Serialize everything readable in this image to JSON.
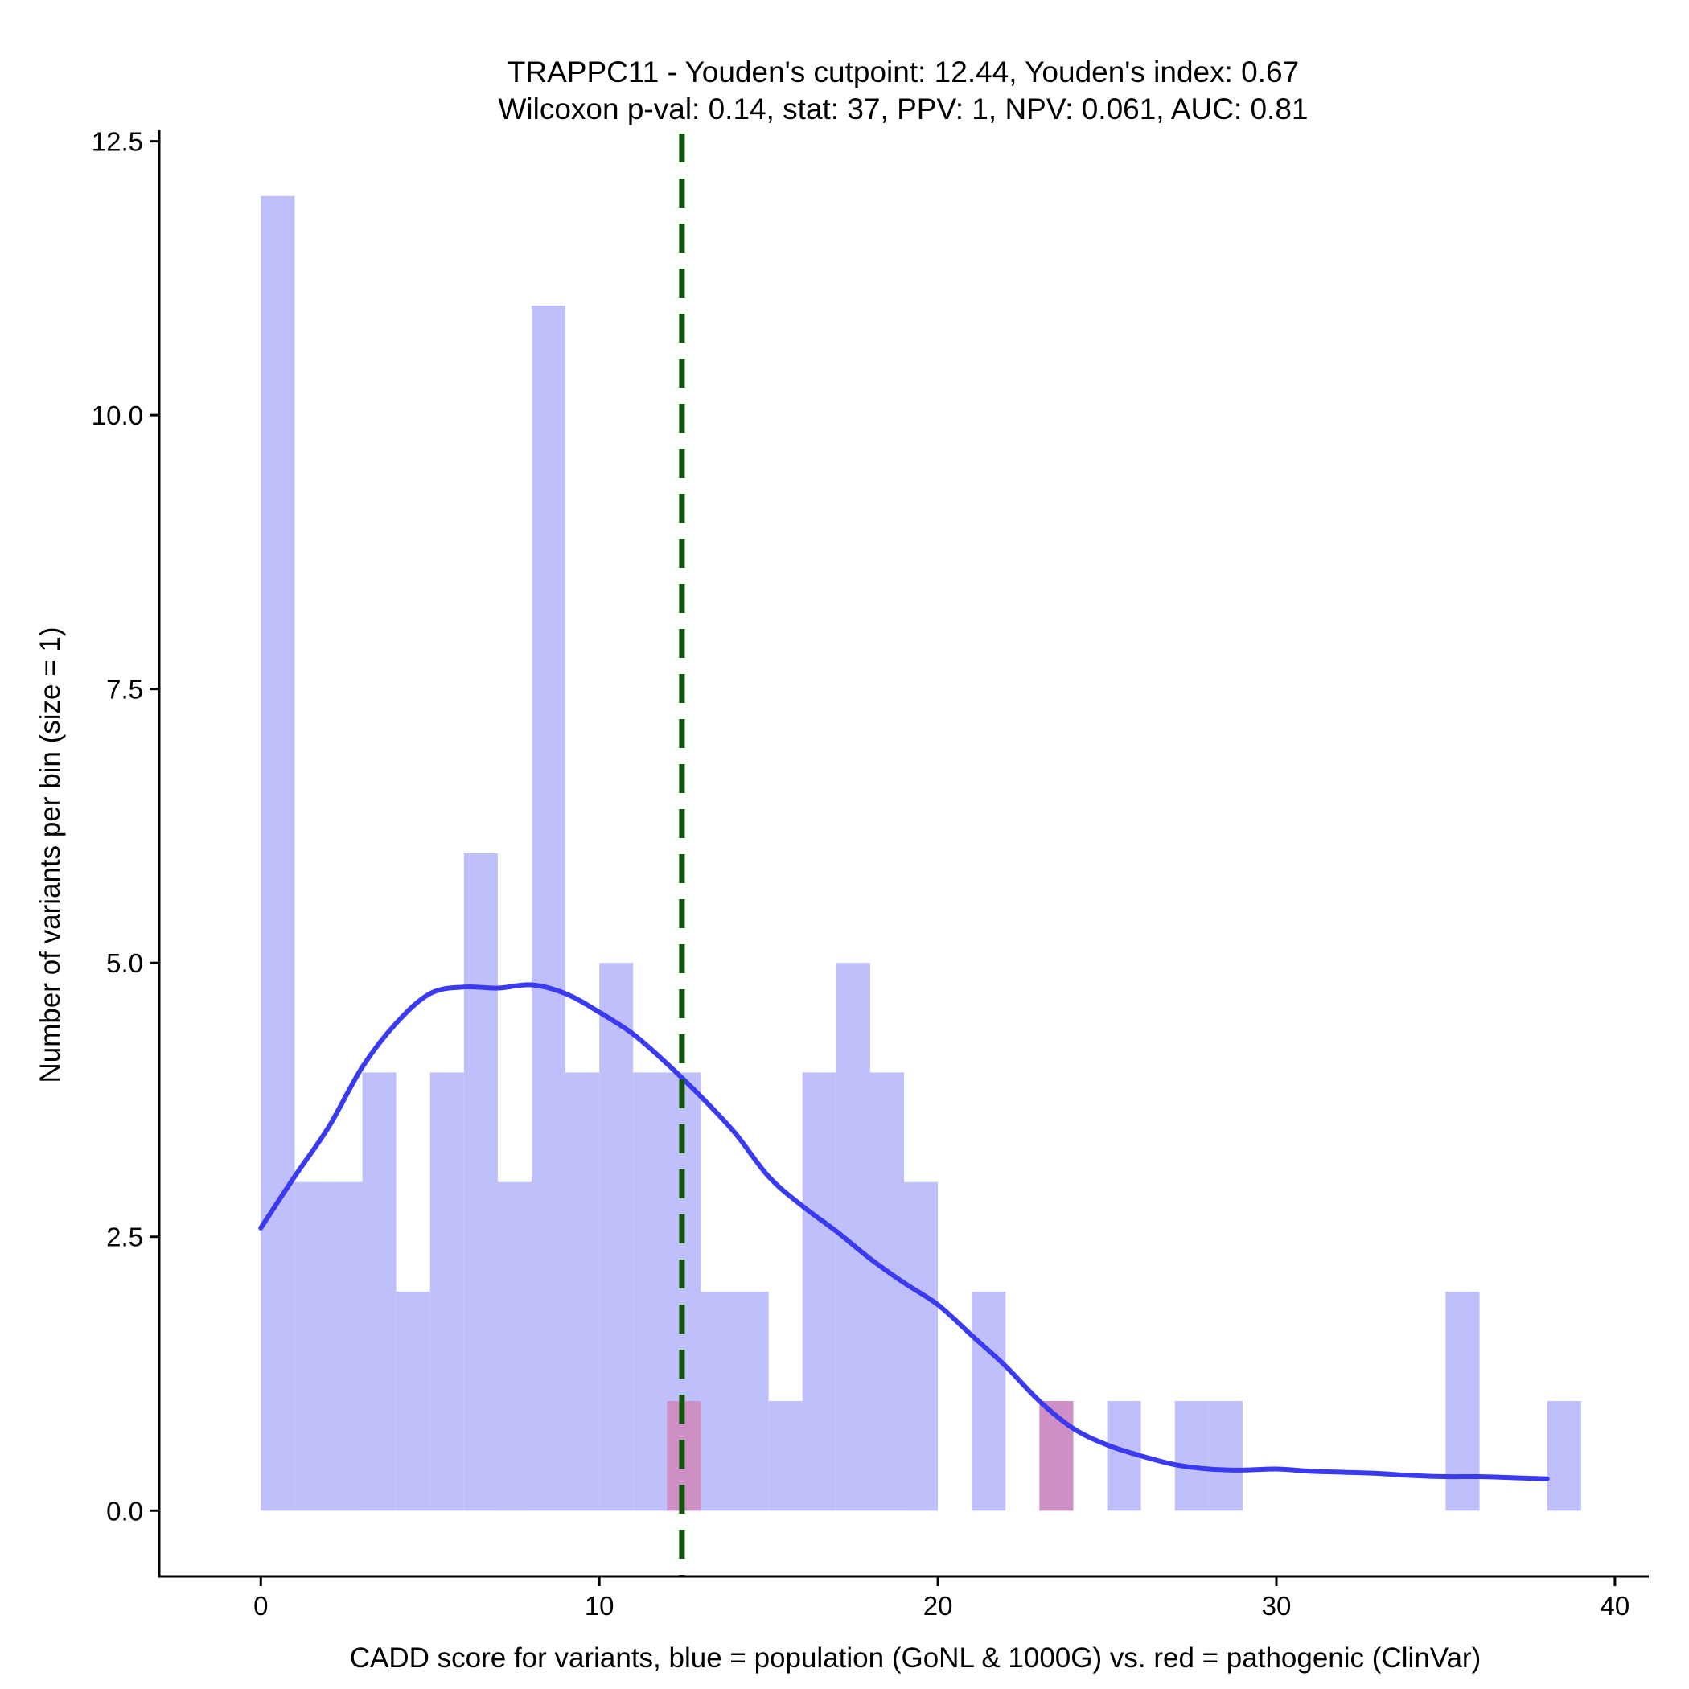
{
  "chart_data": {
    "type": "histogram",
    "title_line1": "TRAPPC11 - Youden's cutpoint: 12.44, Youden's index: 0.67",
    "title_line2": "Wilcoxon p-val: 0.14, stat: 37, PPV: 1, NPV: 0.061, AUC: 0.81",
    "xlabel": "CADD score for variants, blue = population (GoNL & 1000G) vs. red = pathogenic (ClinVar)",
    "ylabel": "Number of variants per bin (size = 1)",
    "xlim": [
      -3,
      41
    ],
    "ylim": [
      -0.6,
      12.6
    ],
    "xticks": [
      0,
      10,
      20,
      30,
      40
    ],
    "xtick_labels": [
      "0",
      "10",
      "20",
      "30",
      "40"
    ],
    "yticks": [
      0,
      2.5,
      5,
      7.5,
      10,
      12.5
    ],
    "ytick_labels": [
      "0.0",
      "2.5",
      "5.0",
      "7.5",
      "10.0",
      "12.5"
    ],
    "bin_size": 1,
    "series": [
      {
        "name": "population (GoNL & 1000G)",
        "color": "#bfbffb",
        "bins": [
          {
            "start": 0,
            "count": 12
          },
          {
            "start": 1,
            "count": 3
          },
          {
            "start": 2,
            "count": 3
          },
          {
            "start": 3,
            "count": 4
          },
          {
            "start": 4,
            "count": 2
          },
          {
            "start": 5,
            "count": 4
          },
          {
            "start": 6,
            "count": 6
          },
          {
            "start": 7,
            "count": 3
          },
          {
            "start": 8,
            "count": 11
          },
          {
            "start": 9,
            "count": 4
          },
          {
            "start": 10,
            "count": 5
          },
          {
            "start": 11,
            "count": 4
          },
          {
            "start": 12,
            "count": 4
          },
          {
            "start": 13,
            "count": 2
          },
          {
            "start": 14,
            "count": 2
          },
          {
            "start": 15,
            "count": 1
          },
          {
            "start": 16,
            "count": 4
          },
          {
            "start": 17,
            "count": 5
          },
          {
            "start": 18,
            "count": 4
          },
          {
            "start": 19,
            "count": 3
          },
          {
            "start": 21,
            "count": 2
          },
          {
            "start": 23,
            "count": 1
          },
          {
            "start": 25,
            "count": 1
          },
          {
            "start": 27,
            "count": 1
          },
          {
            "start": 28,
            "count": 1
          },
          {
            "start": 35,
            "count": 2
          },
          {
            "start": 38,
            "count": 1
          }
        ]
      },
      {
        "name": "pathogenic (ClinVar)",
        "color": "#cd8fc4",
        "bins": [
          {
            "start": 12,
            "count": 1
          },
          {
            "start": 23,
            "count": 1
          }
        ]
      }
    ],
    "density_curve": {
      "name": "population density",
      "color": "#3a3af2",
      "points": [
        [
          0,
          2.58
        ],
        [
          1,
          3.05
        ],
        [
          2,
          3.5
        ],
        [
          3,
          4.05
        ],
        [
          4,
          4.45
        ],
        [
          5,
          4.72
        ],
        [
          6,
          4.78
        ],
        [
          7,
          4.77
        ],
        [
          8,
          4.8
        ],
        [
          9,
          4.72
        ],
        [
          10,
          4.55
        ],
        [
          11,
          4.35
        ],
        [
          12,
          4.08
        ],
        [
          13,
          3.78
        ],
        [
          14,
          3.45
        ],
        [
          15,
          3.05
        ],
        [
          16,
          2.78
        ],
        [
          17,
          2.55
        ],
        [
          18,
          2.3
        ],
        [
          19,
          2.08
        ],
        [
          20,
          1.88
        ],
        [
          21,
          1.6
        ],
        [
          22,
          1.32
        ],
        [
          23,
          1.0
        ],
        [
          24,
          0.75
        ],
        [
          25,
          0.6
        ],
        [
          26,
          0.5
        ],
        [
          27,
          0.42
        ],
        [
          28,
          0.38
        ],
        [
          29,
          0.37
        ],
        [
          30,
          0.38
        ],
        [
          31,
          0.36
        ],
        [
          32,
          0.35
        ],
        [
          33,
          0.34
        ],
        [
          34,
          0.32
        ],
        [
          35,
          0.31
        ],
        [
          36,
          0.31
        ],
        [
          37,
          0.3
        ],
        [
          38,
          0.29
        ]
      ]
    },
    "cutpoint": {
      "label": "Youden's cutpoint",
      "value": 12.44,
      "color": "#12540e"
    }
  }
}
